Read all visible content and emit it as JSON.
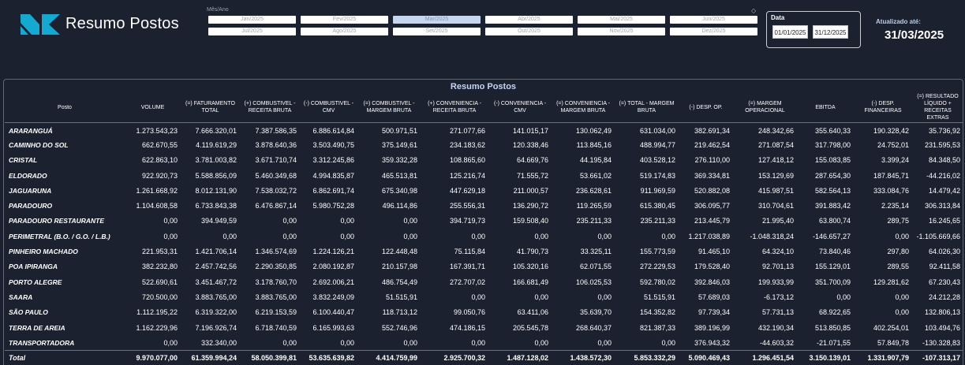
{
  "header": {
    "title": "Resumo Postos",
    "period_label": "Mês/Ano",
    "months": [
      "Jan/2025",
      "Fev/2025",
      "Mar/2025",
      "Abr/2025",
      "Mai/2025",
      "Jun/2025",
      "Jul/2025",
      "Ago/2025",
      "Set/2025",
      "Out/2025",
      "Nov/2025",
      "Dez/2025"
    ],
    "selected_month": "Mar/2025",
    "date_label": "Data",
    "date_start": "01/01/2025",
    "date_end": "31/12/2025",
    "updated_label": "Atualizado até:",
    "updated_value": "31/03/2025",
    "logo_icon": "nk-logo-icon",
    "reset_icon": "eraser-icon",
    "colors": {
      "background": "#1c2130",
      "accent": "#13a9d1",
      "selected_month": "#c5d6ee"
    }
  },
  "table": {
    "title": "Resumo Postos",
    "columns": [
      "Posto",
      "VOLUME",
      "(=) FATURAMENTO TOTAL",
      "(+) COMBUSTIVEL - RECEITA BRUTA",
      "(-) COMBUSTIVEL - CMV",
      "(=) COMBUSTIVEL - MARGEM BRUTA",
      "(+) CONVENIENCIA - RECEITA BRUTA",
      "(-) CONVENIENCIA - CMV",
      "(=) CONVENIENCIA - MARGEM BRUTA",
      "(=) TOTAL - MARGEM BRUTA",
      "(-) DESP. OP.",
      "(=) MARGEM OPERACIONAL",
      "EBITDA",
      "(-) DESP. FINANCEIRAS",
      "(=) RESULTADO LÍQUIDO + RECEITAS EXTRAS"
    ],
    "rows": [
      [
        "ARARANGUÁ",
        "1.273.543,23",
        "7.666.320,01",
        "7.387.586,35",
        "6.886.614,84",
        "500.971,51",
        "271.077,66",
        "141.015,17",
        "130.062,49",
        "631.034,00",
        "382.691,34",
        "248.342,66",
        "355.640,33",
        "190.328,42",
        "35.736,92"
      ],
      [
        "CAMINHO DO SOL",
        "662.670,55",
        "4.119.619,29",
        "3.878.640,36",
        "3.503.490,75",
        "375.149,61",
        "234.183,62",
        "120.338,46",
        "113.845,16",
        "488.994,77",
        "219.462,54",
        "271.087,54",
        "317.798,00",
        "24.752,01",
        "231.595,53"
      ],
      [
        "CRISTAL",
        "622.863,10",
        "3.781.003,82",
        "3.671.710,74",
        "3.312.245,86",
        "359.332,28",
        "108.865,60",
        "64.669,76",
        "44.195,84",
        "403.528,12",
        "276.110,00",
        "127.418,12",
        "155.083,85",
        "3.399,24",
        "84.348,50"
      ],
      [
        "ELDORADO",
        "922.920,73",
        "5.588.856,09",
        "5.460.349,68",
        "4.994.835,87",
        "465.513,81",
        "125.216,74",
        "71.555,72",
        "53.661,02",
        "519.174,83",
        "369.334,81",
        "153.129,69",
        "287.654,30",
        "187.845,71",
        "-44.216,02"
      ],
      [
        "JAGUARUNA",
        "1.261.668,92",
        "8.012.131,90",
        "7.538.032,72",
        "6.862.691,74",
        "675.340,98",
        "447.629,18",
        "211.000,57",
        "236.628,61",
        "911.969,59",
        "520.882,08",
        "415.987,51",
        "582.564,13",
        "333.084,76",
        "14.479,42"
      ],
      [
        "PARADOURO",
        "1.104.608,58",
        "6.733.843,38",
        "6.476.867,14",
        "5.980.752,28",
        "496.114,86",
        "255.556,31",
        "136.290,72",
        "119.265,59",
        "615.380,45",
        "306.095,77",
        "310.704,61",
        "391.883,42",
        "2.235,14",
        "306.313,84"
      ],
      [
        "PARADOURO RESTAURANTE",
        "0,00",
        "394.949,59",
        "0,00",
        "0,00",
        "0,00",
        "394.719,73",
        "159.508,40",
        "235.211,33",
        "235.211,33",
        "213.445,79",
        "21.995,40",
        "63.800,74",
        "289,75",
        "16.245,65"
      ],
      [
        "PERIMETRAL (B.O. / G.O. / L.B.)",
        "0,00",
        "0,00",
        "0,00",
        "0,00",
        "0,00",
        "0,00",
        "0,00",
        "0,00",
        "0,00",
        "1.217.038,89",
        "-1.048.318,24",
        "-146.657,27",
        "0,00",
        "-1.105.669,66"
      ],
      [
        "PINHEIRO MACHADO",
        "221.953,31",
        "1.421.706,14",
        "1.346.574,69",
        "1.224.126,21",
        "122.448,48",
        "75.115,84",
        "41.790,73",
        "33.325,11",
        "155.773,59",
        "91.465,10",
        "64.324,10",
        "73.840,46",
        "297,80",
        "64.026,30"
      ],
      [
        "POA IPIRANGA",
        "382.232,80",
        "2.457.742,56",
        "2.290.350,85",
        "2.080.192,87",
        "210.157,98",
        "167.391,71",
        "105.320,16",
        "62.071,55",
        "272.229,53",
        "179.528,40",
        "92.701,13",
        "155.129,01",
        "289,55",
        "92.411,58"
      ],
      [
        "PORTO ALEGRE",
        "522.690,61",
        "3.451.467,72",
        "3.178.760,70",
        "2.692.006,21",
        "486.754,49",
        "272.707,02",
        "166.681,49",
        "106.025,53",
        "592.780,02",
        "392.846,03",
        "199.933,99",
        "351.700,09",
        "129.281,62",
        "67.230,43"
      ],
      [
        "SAARA",
        "720.500,00",
        "3.883.765,00",
        "3.883.765,00",
        "3.832.249,09",
        "51.515,91",
        "0,00",
        "0,00",
        "0,00",
        "51.515,91",
        "57.689,03",
        "-6.173,12",
        "0,00",
        "0,00",
        "24.212,28"
      ],
      [
        "SÃO PAULO",
        "1.112.195,22",
        "6.319.322,00",
        "6.219.153,59",
        "6.100.440,47",
        "118.713,12",
        "99.050,76",
        "63.411,06",
        "35.639,70",
        "154.352,82",
        "97.739,34",
        "57.731,13",
        "68.922,65",
        "0,00",
        "132.806,13"
      ],
      [
        "TERRA DE AREIA",
        "1.162.229,96",
        "7.196.926,74",
        "6.718.740,59",
        "6.165.993,63",
        "552.746,96",
        "474.186,15",
        "205.545,78",
        "268.640,37",
        "821.387,33",
        "389.196,99",
        "432.190,34",
        "513.850,85",
        "402.254,01",
        "103.494,76"
      ],
      [
        "TRANSPORTADORA",
        "0,00",
        "332.340,00",
        "0,00",
        "0,00",
        "0,00",
        "0,00",
        "0,00",
        "0,00",
        "0,00",
        "376.943,32",
        "-44.603,32",
        "-21.071,55",
        "57.849,78",
        "-130.328,83"
      ]
    ],
    "total": [
      "Total",
      "9.970.077,00",
      "61.359.994,24",
      "58.050.399,81",
      "53.635.639,82",
      "4.414.759,99",
      "2.925.700,32",
      "1.487.128,02",
      "1.438.572,30",
      "5.853.332,29",
      "5.090.469,43",
      "1.296.451,54",
      "3.150.139,01",
      "1.331.907,79",
      "-107.313,17"
    ]
  }
}
